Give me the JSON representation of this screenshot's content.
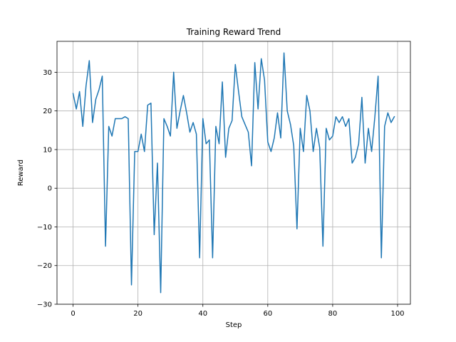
{
  "chart_data": {
    "type": "line",
    "title": "Training Reward Trend",
    "xlabel": "Step",
    "ylabel": "Reward",
    "xlim": [
      -4.95,
      103.95
    ],
    "ylim": [
      -30,
      38
    ],
    "xticks": [
      0,
      20,
      40,
      60,
      80,
      100
    ],
    "yticks": [
      -30,
      -20,
      -10,
      0,
      10,
      20,
      30
    ],
    "grid": true,
    "line_color": "#1f77b4",
    "grid_color": "#b0b0b0",
    "series": [
      {
        "x": [
          0,
          1,
          2,
          3,
          4,
          5,
          6,
          7,
          8,
          9,
          10,
          11,
          12,
          13,
          14,
          15,
          16,
          17,
          18,
          19,
          20,
          21,
          22,
          23,
          24,
          25,
          26,
          27,
          28,
          29,
          30,
          31,
          32,
          33,
          34,
          35,
          36,
          37,
          38,
          39,
          40,
          41,
          42,
          43,
          44,
          45,
          46,
          47,
          48,
          49,
          50,
          51,
          52,
          53,
          54,
          55,
          56,
          57,
          58,
          59,
          60,
          61,
          62,
          63,
          64,
          65,
          66,
          67,
          68,
          69,
          70,
          71,
          72,
          73,
          74,
          75,
          76,
          77,
          78,
          79,
          80,
          81,
          82,
          83,
          84,
          85,
          86,
          87,
          88,
          89,
          90,
          91,
          92,
          93,
          94,
          95,
          96,
          97,
          98,
          99
        ],
        "values": [
          24.5,
          20.5,
          25,
          16,
          26.5,
          33,
          17,
          23,
          25.5,
          29,
          -15,
          16,
          13.5,
          18,
          18,
          18,
          18.5,
          18,
          -25,
          9.5,
          9.5,
          14,
          9.5,
          21.5,
          22,
          -12,
          6.5,
          -27,
          18,
          16,
          13.5,
          30,
          15.5,
          20,
          24,
          19.5,
          14.5,
          17,
          14,
          -18,
          18,
          11.5,
          12.5,
          -18,
          16,
          11.5,
          27.5,
          8,
          15.5,
          17.5,
          32,
          25,
          18.5,
          16.5,
          14.5,
          5.8,
          32.5,
          20.5,
          33.5,
          28,
          12,
          9.5,
          13,
          19.5,
          13,
          35,
          20,
          16.5,
          11,
          -10.5,
          15.5,
          9.5,
          24,
          20,
          9.5,
          15.5,
          10.5,
          -15,
          15.5,
          12.5,
          13.5,
          18.5,
          17,
          18.5,
          16,
          18,
          6.5,
          8,
          11.5,
          23.5,
          6.5,
          15.5,
          9.5,
          18.5,
          29,
          -18,
          16,
          19.5,
          17,
          18.5
        ]
      }
    ]
  }
}
